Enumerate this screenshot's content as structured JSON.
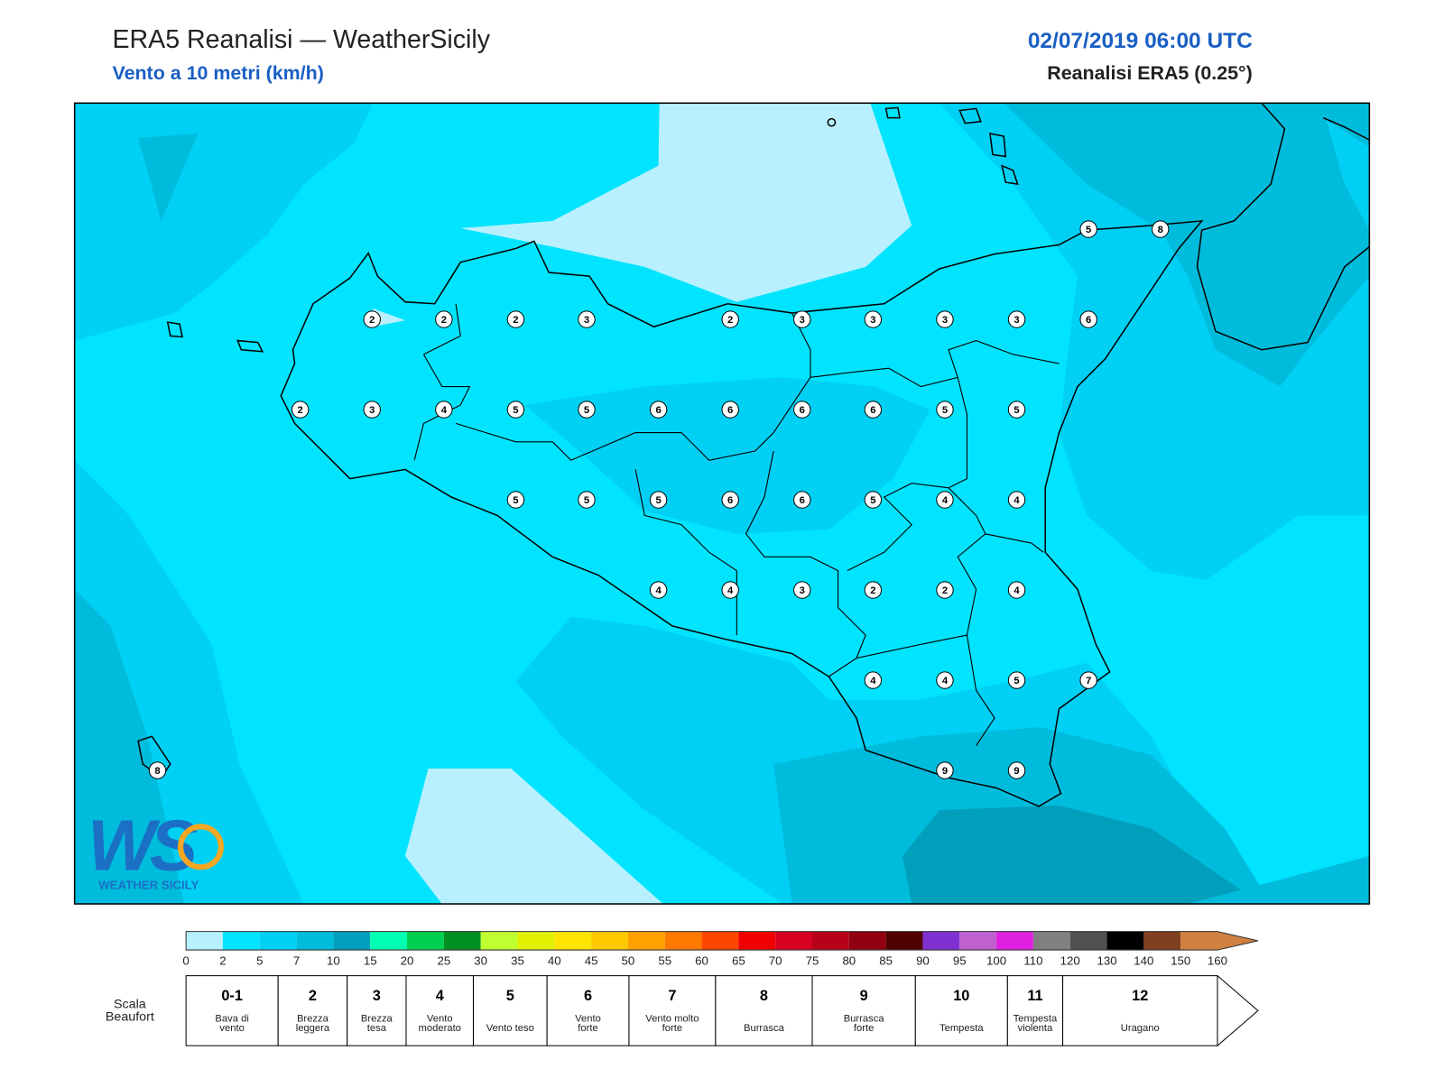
{
  "header": {
    "title": "ERA5 Reanalisi — WeatherSicily",
    "subtitle": "Vento a 10 metri (km/h)",
    "date": "02/07/2019 06:00 UTC",
    "source": "Reanalisi ERA5 (0.25°)"
  },
  "map": {
    "stations": [
      2,
      2,
      2,
      3,
      2,
      3,
      3,
      3,
      3,
      6,
      2,
      3,
      4,
      5,
      5,
      6,
      6,
      6,
      6,
      5,
      5,
      5,
      5,
      5,
      6,
      6,
      5,
      4,
      4,
      4,
      4,
      3,
      2,
      2,
      4,
      4,
      4,
      5,
      7,
      9,
      9,
      5,
      8,
      8
    ],
    "logo": {
      "mark": "WS",
      "name": "WEATHER SICILY"
    }
  },
  "colorbar": {
    "ticks": [
      0,
      2,
      5,
      7,
      10,
      15,
      20,
      25,
      30,
      35,
      40,
      45,
      50,
      55,
      60,
      65,
      70,
      75,
      80,
      85,
      90,
      95,
      100,
      110,
      120,
      130,
      140,
      150,
      160
    ],
    "colors": [
      "#b8f0ff",
      "#00e4ff",
      "#00d0f4",
      "#00bcdc",
      "#00a0bc",
      "#00ffb0",
      "#00d050",
      "#009020",
      "#c0ff30",
      "#e0f000",
      "#ffe600",
      "#ffc800",
      "#ffa000",
      "#ff7800",
      "#ff4600",
      "#f00000",
      "#d80020",
      "#b80018",
      "#900010",
      "#500000",
      "#8030d0",
      "#c060d0",
      "#e020e0",
      "#808080",
      "#505050",
      "#000000",
      "#804020",
      "#d08040"
    ]
  },
  "beaufort": {
    "label": [
      "Scala",
      "Beaufort"
    ],
    "levels": [
      {
        "force": "0-1",
        "desc": [
          "Bava di",
          "vento"
        ]
      },
      {
        "force": "2",
        "desc": [
          "Brezza",
          "leggera"
        ]
      },
      {
        "force": "3",
        "desc": [
          "Brezza",
          "tesa"
        ]
      },
      {
        "force": "4",
        "desc": [
          "Vento",
          "moderato"
        ]
      },
      {
        "force": "5",
        "desc": [
          "Vento teso"
        ]
      },
      {
        "force": "6",
        "desc": [
          "Vento",
          "forte"
        ]
      },
      {
        "force": "7",
        "desc": [
          "Vento molto",
          "forte"
        ]
      },
      {
        "force": "8",
        "desc": [
          "Burrasca"
        ]
      },
      {
        "force": "9",
        "desc": [
          "Burrasca",
          "forte"
        ]
      },
      {
        "force": "10",
        "desc": [
          "Tempesta"
        ]
      },
      {
        "force": "11",
        "desc": [
          "Tempesta",
          "violenta"
        ]
      },
      {
        "force": "12",
        "desc": [
          "Uragano"
        ]
      }
    ]
  }
}
